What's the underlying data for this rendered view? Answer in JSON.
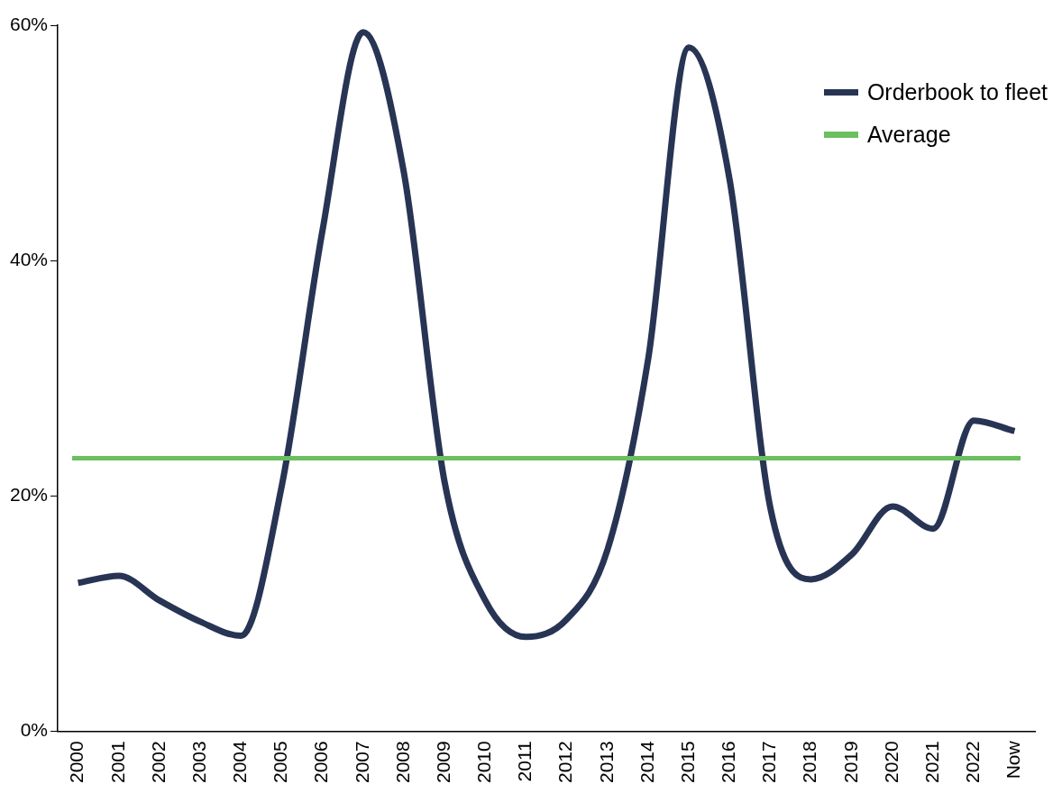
{
  "chart_data": {
    "type": "line",
    "categories": [
      "2000",
      "2001",
      "2002",
      "2003",
      "2004",
      "2005",
      "2006",
      "2007",
      "2008",
      "2009",
      "2010",
      "2011",
      "2012",
      "2013",
      "2014",
      "2015",
      "2016",
      "2017",
      "2018",
      "2019",
      "2020",
      "2021",
      "2022",
      "Now"
    ],
    "series": [
      {
        "name": "Orderbook to fleet",
        "color": "#283454",
        "values": [
          12.6,
          13.2,
          11.1,
          9.3,
          8.1,
          20.8,
          42.5,
          59.4,
          47.5,
          21.2,
          11.1,
          8.0,
          9.5,
          15.4,
          31.6,
          58.1,
          46.9,
          19.0,
          12.9,
          15.0,
          19.1,
          17.2,
          26.4,
          25.5
        ]
      }
    ],
    "ref_lines": [
      {
        "axis": "y",
        "value": 23.2,
        "label": "Average",
        "color": "#6abf5e"
      }
    ],
    "ylim": [
      0,
      60
    ],
    "yticks": [
      {
        "value": 0,
        "label": "0%"
      },
      {
        "value": 20,
        "label": "20%"
      },
      {
        "value": 40,
        "label": "40%"
      },
      {
        "value": 60,
        "label": "60%"
      }
    ],
    "grid": false,
    "legend": "top right",
    "marker": "none",
    "line_style": "solid"
  }
}
